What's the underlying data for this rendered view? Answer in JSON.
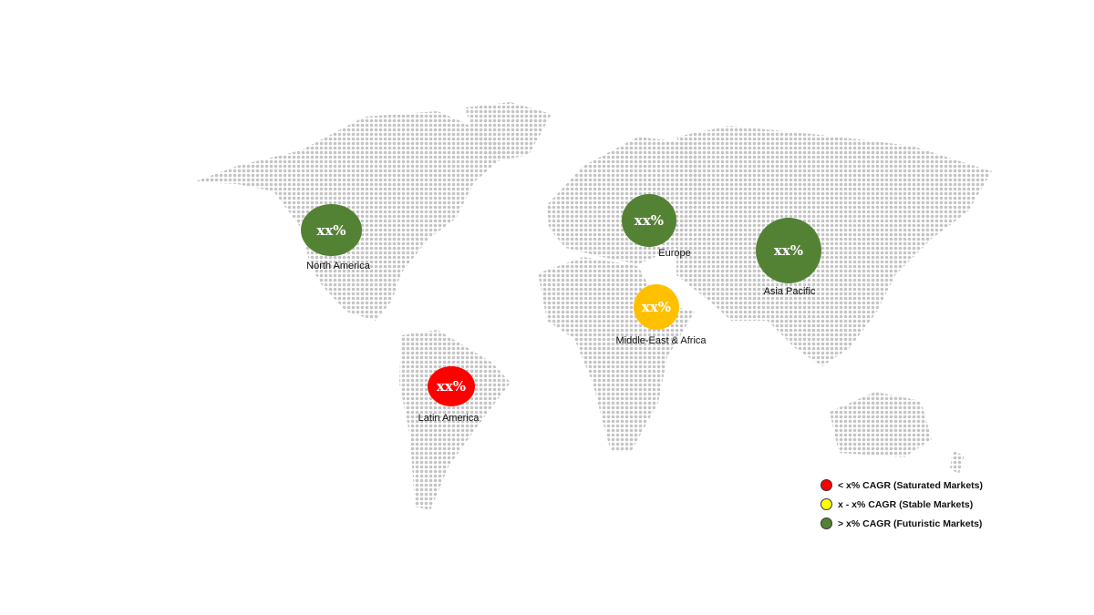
{
  "colors": {
    "futuristic": "#548235",
    "saturated": "#ff0000",
    "stable": "#ffc000",
    "legend_stable": "#ffff00",
    "map_dots": "#c4c4c4"
  },
  "regions": [
    {
      "name": "North America",
      "value": "xx%",
      "category": "futuristic"
    },
    {
      "name": "Europe",
      "value": "xx%",
      "category": "futuristic"
    },
    {
      "name": "Asia Pacific",
      "value": "xx%",
      "category": "futuristic"
    },
    {
      "name": "Middle-East & Africa",
      "value": "xx%",
      "category": "stable"
    },
    {
      "name": "Latin America",
      "value": "xx%",
      "category": "saturated"
    }
  ],
  "legend": [
    {
      "label": "< x% CAGR (Saturated Markets)",
      "color": "#ff0000"
    },
    {
      "label": "x - x% CAGR (Stable Markets)",
      "color": "#ffff00"
    },
    {
      "label": "> x% CAGR (Futuristic Markets)",
      "color": "#548235"
    }
  ]
}
